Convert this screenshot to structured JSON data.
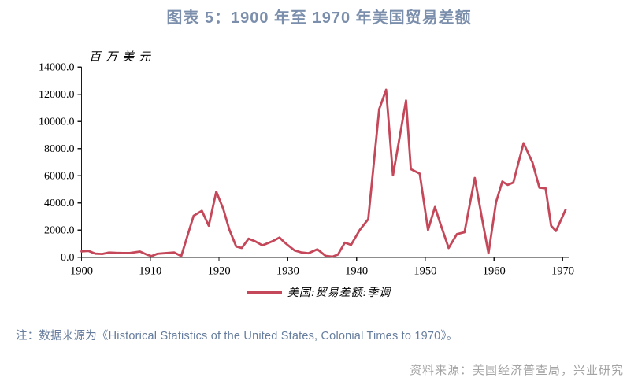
{
  "header": {
    "title": "图表 5：1900 年至 1970 年美国贸易差额"
  },
  "chart_data": {
    "type": "line",
    "title": "图表 5：1900 年至 1970 年美国贸易差额",
    "unit_label": "百万美元",
    "xlabel": "",
    "ylabel": "百万美元",
    "xlim": [
      1900,
      1971.3
    ],
    "ylim": [
      0,
      14000
    ],
    "grid": false,
    "legend_position": "bottom-center",
    "x_ticks": [
      "1900",
      "1910",
      "1920",
      "1930",
      "1940",
      "1950",
      "1960",
      "1970"
    ],
    "y_ticks": [
      "0.0",
      "2000.0",
      "4000.0",
      "6000.0",
      "8000.0",
      "10000.0",
      "12000.0",
      "14000.0"
    ],
    "series": [
      {
        "name": "美国:贸易差额:季调",
        "color": "#c5485a",
        "points": [
          [
            1900,
            430
          ],
          [
            1901,
            465
          ],
          [
            1902,
            260
          ],
          [
            1903,
            240
          ],
          [
            1904,
            340
          ],
          [
            1905,
            320
          ],
          [
            1906,
            310
          ],
          [
            1907,
            310
          ],
          [
            1908.5,
            420
          ],
          [
            1909.5,
            190
          ],
          [
            1910.2,
            80
          ],
          [
            1911,
            250
          ],
          [
            1912,
            290
          ],
          [
            1913.5,
            350
          ],
          [
            1914.5,
            80
          ],
          [
            1916.3,
            3050
          ],
          [
            1917.5,
            3420
          ],
          [
            1918.5,
            2320
          ],
          [
            1919.6,
            4830
          ],
          [
            1920.6,
            3580
          ],
          [
            1921.5,
            2030
          ],
          [
            1922.5,
            780
          ],
          [
            1923.3,
            680
          ],
          [
            1924.3,
            1360
          ],
          [
            1925.3,
            1160
          ],
          [
            1926.3,
            870
          ],
          [
            1927.7,
            1160
          ],
          [
            1928.8,
            1450
          ],
          [
            1929.5,
            1100
          ],
          [
            1930.2,
            810
          ],
          [
            1931,
            490
          ],
          [
            1932,
            350
          ],
          [
            1933,
            290
          ],
          [
            1934.3,
            580
          ],
          [
            1935.5,
            100
          ],
          [
            1936.5,
            40
          ],
          [
            1937.3,
            200
          ],
          [
            1938.3,
            1070
          ],
          [
            1939.2,
            910
          ],
          [
            1940.5,
            2030
          ],
          [
            1941.7,
            2800
          ],
          [
            1943.3,
            10900
          ],
          [
            1944.3,
            12330
          ],
          [
            1945.3,
            6030
          ],
          [
            1947.2,
            11540
          ],
          [
            1947.9,
            6480
          ],
          [
            1949.2,
            6150
          ],
          [
            1950.4,
            2000
          ],
          [
            1951.4,
            3700
          ],
          [
            1952.1,
            2610
          ],
          [
            1953.4,
            680
          ],
          [
            1954.6,
            1700
          ],
          [
            1955.7,
            1840
          ],
          [
            1957.2,
            5840
          ],
          [
            1958.2,
            3000
          ],
          [
            1959.2,
            290
          ],
          [
            1960.3,
            4060
          ],
          [
            1961.2,
            5570
          ],
          [
            1962,
            5320
          ],
          [
            1962.8,
            5500
          ],
          [
            1964.3,
            8400
          ],
          [
            1965.6,
            6960
          ],
          [
            1966.6,
            5120
          ],
          [
            1967.5,
            5070
          ],
          [
            1968.3,
            2320
          ],
          [
            1969,
            1930
          ],
          [
            1970.4,
            3490
          ]
        ]
      }
    ]
  },
  "footnote": {
    "text": "注：数据来源为《Historical Statistics of the United States, Colonial Times to 1970》。"
  },
  "source": {
    "text": "资料来源：美国经济普查局，兴业研究"
  },
  "colors": {
    "line": "#c5485a",
    "title": "#7b8fac",
    "footnote": "#667d9d",
    "source": "#a3a3a3",
    "axis": "#1a1a1a"
  }
}
